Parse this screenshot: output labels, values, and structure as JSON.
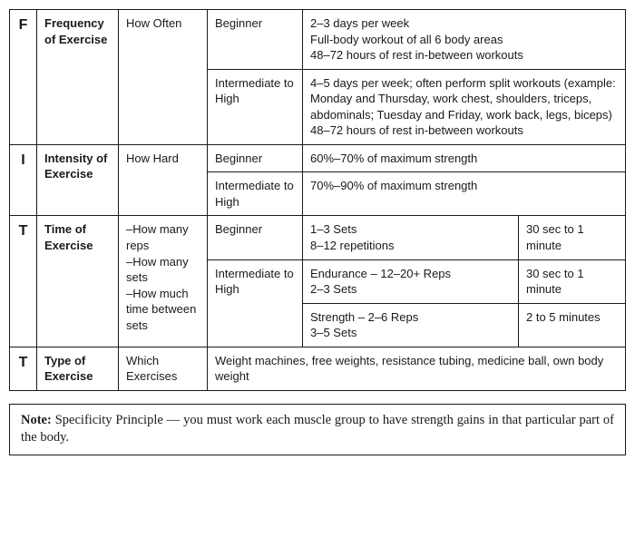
{
  "colors": {
    "border": "#1a1a1a",
    "text": "#1a1a1a",
    "background": "#ffffff"
  },
  "table": {
    "F": {
      "letter": "F",
      "name": "Frequency of Exercise",
      "how": "How Often",
      "rows": [
        {
          "level": "Beginner",
          "detail": "2–3 days per week\nFull-body workout of all 6 body areas\n48–72 hours of rest in-between workouts"
        },
        {
          "level": "Intermediate to High",
          "detail": "4–5 days per week; often perform split workouts (example: Monday and Thursday, work chest, shoulders, triceps, abdominals; Tuesday and Friday, work back, legs, biceps)\n48–72 hours of rest in-between workouts"
        }
      ]
    },
    "I": {
      "letter": "I",
      "name": "Intensity of Exercise",
      "how": "How Hard",
      "rows": [
        {
          "level": "Beginner",
          "detail": "60%–70% of maximum strength"
        },
        {
          "level": "Intermediate to High",
          "detail": "70%–90% of maximum strength"
        }
      ]
    },
    "T1": {
      "letter": "T",
      "name": "Time of Exercise",
      "how": "–How many reps\n–How many sets\n–How much time between sets",
      "rows": [
        {
          "level": "Beginner",
          "reps": "1–3 Sets\n8–12 repetitions",
          "rest": "30 sec to 1 minute"
        },
        {
          "level": "Intermediate to High",
          "reps": "Endurance – 12–20+ Reps\n2–3 Sets",
          "rest": "30 sec to 1 minute"
        },
        {
          "level": "",
          "reps": "Strength – 2–6 Reps\n3–5 Sets",
          "rest": "2 to 5 minutes"
        }
      ]
    },
    "T2": {
      "letter": "T",
      "name": "Type of Exercise",
      "how": "Which Exercises",
      "detail": "Weight machines, free weights, resistance tubing, medicine ball, own body weight"
    }
  },
  "note": {
    "label": "Note:",
    "text": " Specificity Principle — you must work each muscle group to have strength gains in that particular part of the body."
  }
}
